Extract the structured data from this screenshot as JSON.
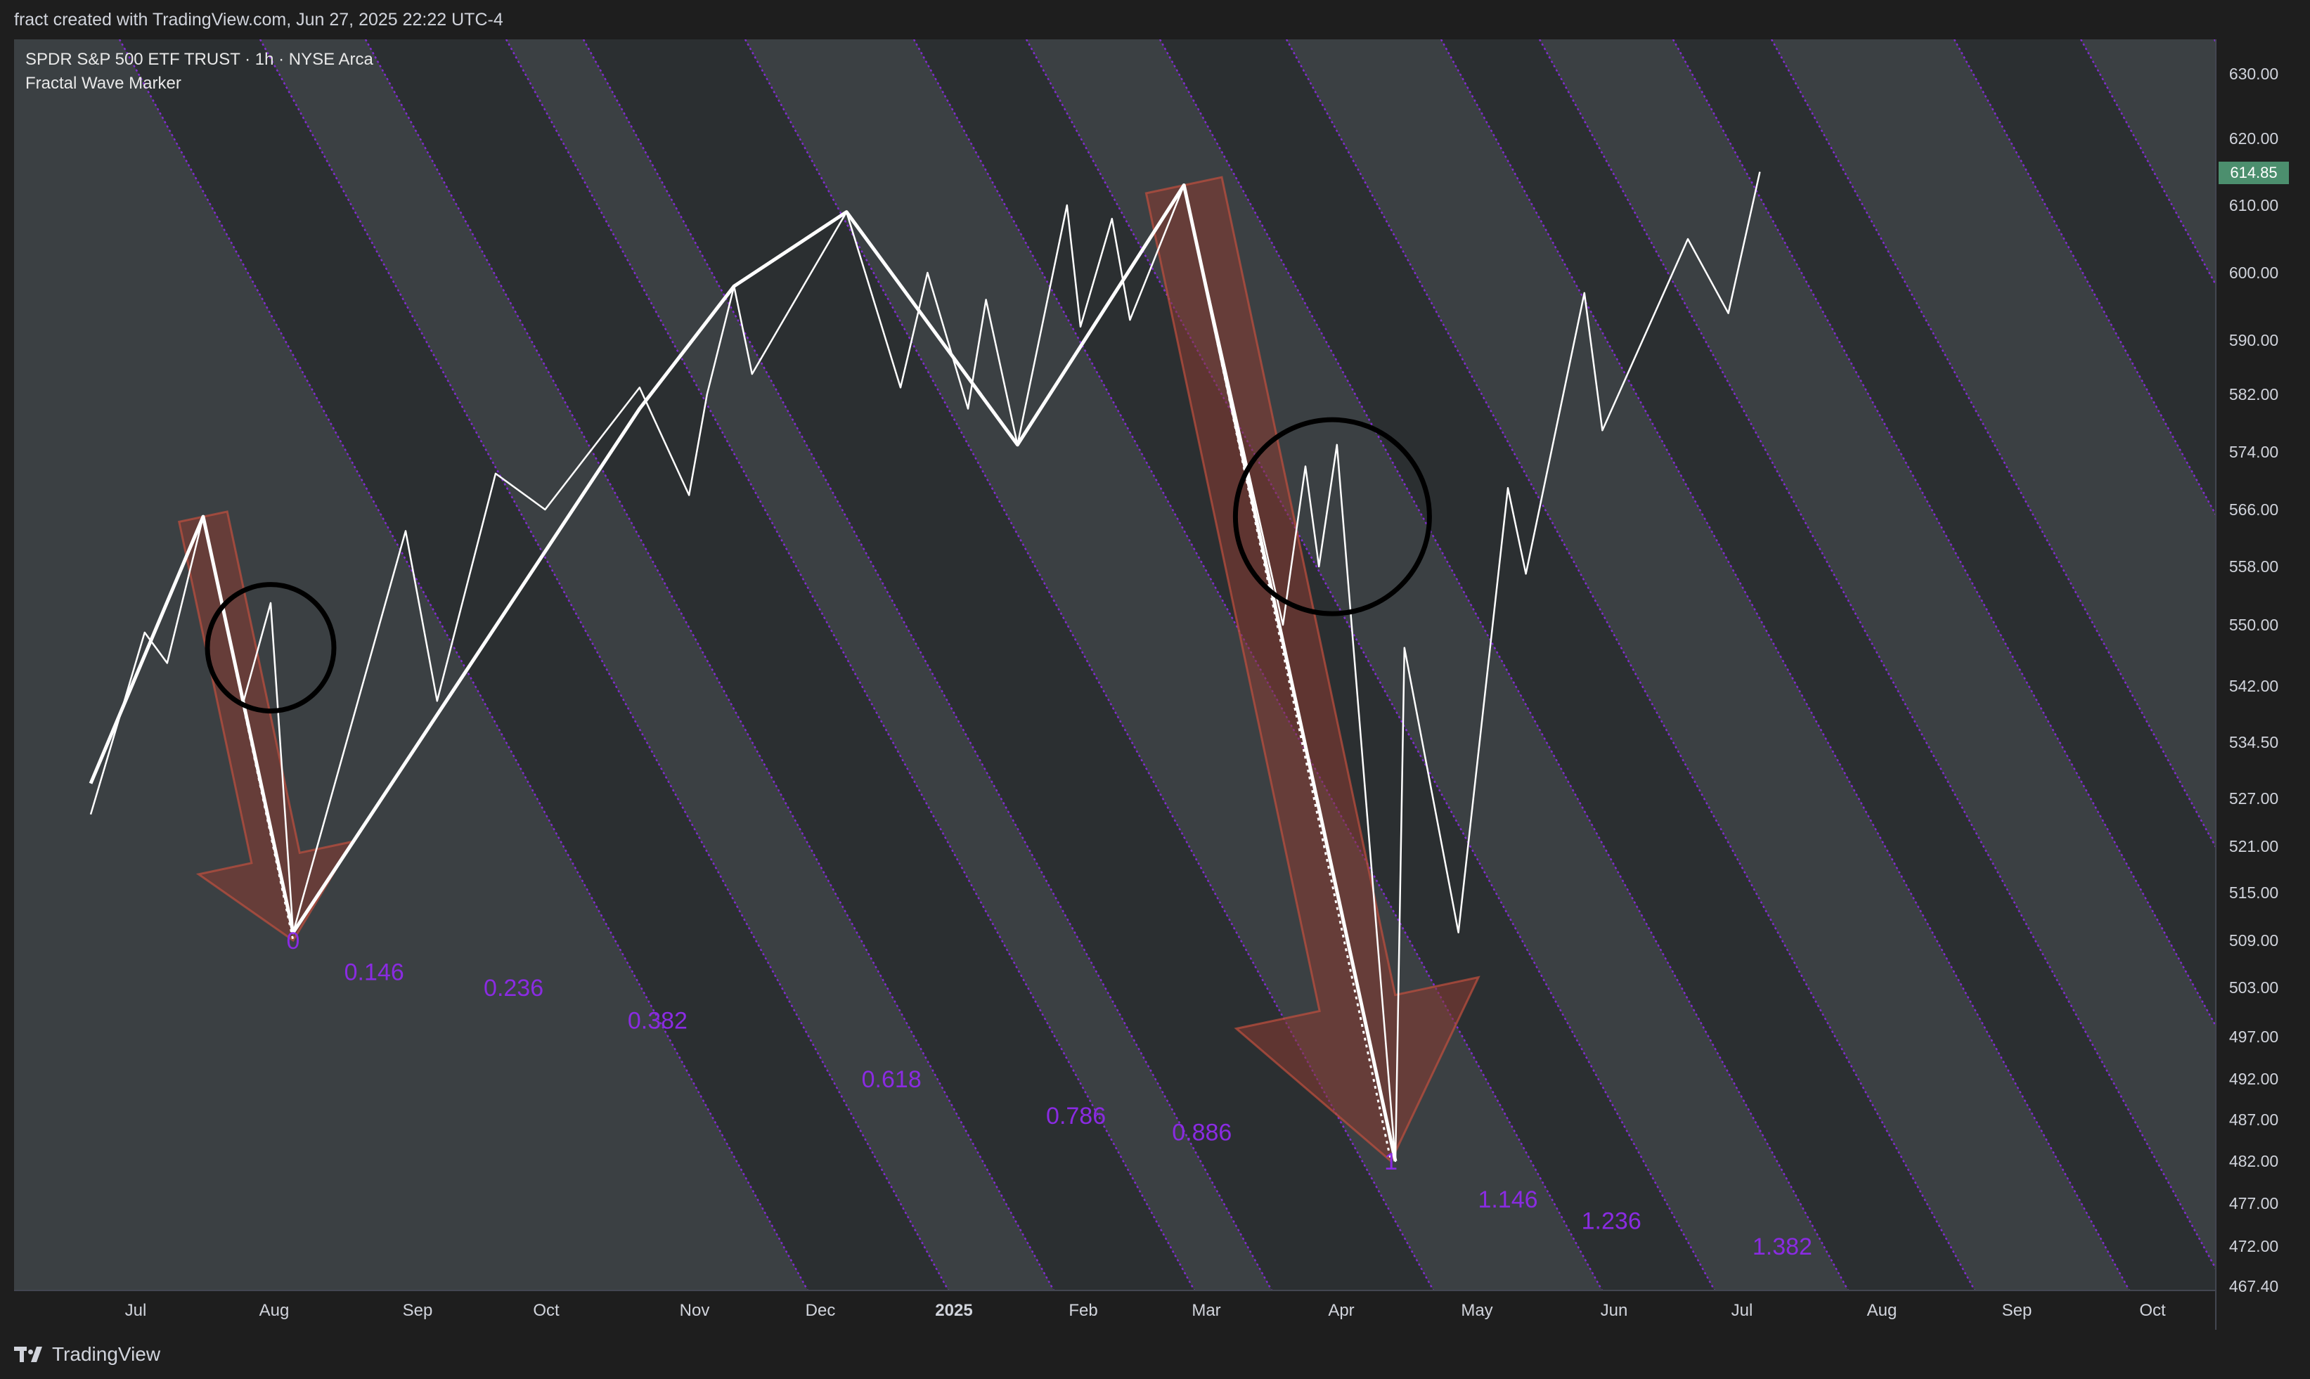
{
  "header": {
    "caption": "fract created with TradingView.com, Jun 27, 2025 22:22 UTC-4"
  },
  "legend": {
    "symbol": "SPDR S&P 500 ETF TRUST · 1h · NYSE Arca",
    "indicator": "Fractal Wave Marker"
  },
  "footer": {
    "brand": "TradingView"
  },
  "colors": {
    "background": "#1e1e1e",
    "band_light": "#3b4043",
    "band_dark": "#2b2f31",
    "band_edge": "#8a2be2",
    "fib_label": "#8a2be2",
    "zigzag": "#ffffff",
    "arrow_fill": "#8b3a32",
    "last_price_bg": "#4c8f6e",
    "axis_text": "#d1d4dc"
  },
  "chart_data": {
    "type": "line",
    "title": "SPDR S&P 500 ETF TRUST · 1h · NYSE Arca",
    "x_ticks": [
      "Jul",
      "Aug",
      "Sep",
      "Oct",
      "Nov",
      "Dec",
      "2025",
      "Feb",
      "Mar",
      "Apr",
      "May",
      "Jun",
      "Jul",
      "Aug",
      "Sep",
      "Oct"
    ],
    "y_ticks": [
      630,
      620,
      610,
      600,
      590,
      582,
      574,
      566,
      558,
      550,
      542,
      534.5,
      527,
      521,
      515,
      509,
      503,
      497,
      492,
      487,
      482,
      477,
      472,
      467.4
    ],
    "y_tick_labels": [
      "630.00",
      "620.00",
      "610.00",
      "600.00",
      "590.00",
      "582.00",
      "574.00",
      "566.00",
      "558.00",
      "550.00",
      "542.00",
      "534.50",
      "527.00",
      "521.00",
      "515.00",
      "509.00",
      "503.00",
      "497.00",
      "492.00",
      "487.00",
      "482.00",
      "477.00",
      "472.00",
      "467.40"
    ],
    "ylim": [
      467.4,
      630
    ],
    "last_price": "614.85",
    "primary_swings": {
      "name": "",
      "points": [
        [
          "2024-06-21",
          529
        ],
        [
          "2024-07-16",
          565
        ],
        [
          "2024-08-05",
          510
        ],
        [
          "2024-10-21",
          580
        ],
        [
          "2024-11-11",
          598
        ],
        [
          "2024-12-06",
          609
        ],
        [
          "2025-01-13",
          575
        ],
        [
          "2025-02-19",
          613
        ],
        [
          "2025-04-07",
          482
        ]
      ]
    },
    "minor_swings": {
      "name": "",
      "points": [
        [
          "2024-06-21",
          525
        ],
        [
          "2024-07-03",
          549
        ],
        [
          "2024-07-08",
          545
        ],
        [
          "2024-07-16",
          565
        ],
        [
          "2024-07-25",
          540
        ],
        [
          "2024-07-31",
          553
        ],
        [
          "2024-08-05",
          510
        ],
        [
          "2024-08-30",
          563
        ],
        [
          "2024-09-06",
          540
        ],
        [
          "2024-09-19",
          571
        ],
        [
          "2024-09-30",
          566
        ],
        [
          "2024-10-21",
          583
        ],
        [
          "2024-11-01",
          568
        ],
        [
          "2024-11-05",
          582
        ],
        [
          "2024-11-11",
          598
        ],
        [
          "2024-11-15",
          585
        ],
        [
          "2024-12-06",
          609
        ],
        [
          "2024-12-18",
          583
        ],
        [
          "2024-12-24",
          600
        ],
        [
          "2025-01-02",
          580
        ],
        [
          "2025-01-06",
          596
        ],
        [
          "2025-01-13",
          575
        ],
        [
          "2025-01-24",
          610
        ],
        [
          "2025-01-27",
          592
        ],
        [
          "2025-02-03",
          608
        ],
        [
          "2025-02-07",
          593
        ],
        [
          "2025-02-19",
          613
        ],
        [
          "2025-03-13",
          550
        ],
        [
          "2025-03-18",
          572
        ],
        [
          "2025-03-21",
          558
        ],
        [
          "2025-03-25",
          575
        ],
        [
          "2025-04-07",
          482
        ],
        [
          "2025-04-09",
          547
        ],
        [
          "2025-04-21",
          510
        ],
        [
          "2025-05-02",
          569
        ],
        [
          "2025-05-06",
          557
        ],
        [
          "2025-05-19",
          597
        ],
        [
          "2025-05-23",
          577
        ],
        [
          "2025-06-11",
          605
        ],
        [
          "2025-06-20",
          594
        ],
        [
          "2025-06-27",
          615
        ]
      ]
    },
    "highlight_circles": [
      {
        "date": "2024-07-31",
        "price": 547
      },
      {
        "date": "2025-03-24",
        "price": 565
      }
    ],
    "fib_labels": [
      {
        "label": "0",
        "date": "2024-08-05",
        "price": 509
      },
      {
        "label": "0.146",
        "date": "2024-08-23",
        "price": 505
      },
      {
        "label": "0.236",
        "date": "2024-09-23",
        "price": 503
      },
      {
        "label": "0.382",
        "date": "2024-10-25",
        "price": 499
      },
      {
        "label": "0.618",
        "date": "2024-12-16",
        "price": 492
      },
      {
        "label": "0.786",
        "date": "2025-01-26",
        "price": 487.5
      },
      {
        "label": "0.886",
        "date": "2025-02-23",
        "price": 485.5
      },
      {
        "label": "1",
        "date": "2025-04-06",
        "price": 482
      },
      {
        "label": "1.146",
        "date": "2025-05-02",
        "price": 477.5
      },
      {
        "label": "1.236",
        "date": "2025-05-25",
        "price": 475
      },
      {
        "label": "1.382",
        "date": "2025-07-02",
        "price": 472
      }
    ],
    "grid": false,
    "legend_position": "top-left"
  }
}
